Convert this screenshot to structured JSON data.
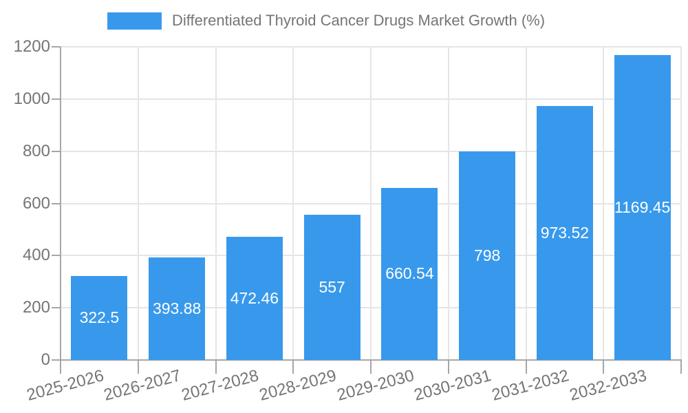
{
  "chart_data": {
    "type": "bar",
    "title": "Differentiated Thyroid Cancer Drugs Market Growth (%)",
    "categories": [
      "2025-2026",
      "2026-2027",
      "2027-2028",
      "2028-2029",
      "2029-2030",
      "2030-2031",
      "2031-2032",
      "2032-2033"
    ],
    "values": [
      322.5,
      393.88,
      472.46,
      557,
      660.54,
      798,
      973.52,
      1169.45
    ],
    "value_labels": [
      "322.5",
      "393.88",
      "472.46",
      "557",
      "660.54",
      "798",
      "973.52",
      "1169.45"
    ],
    "xlabel": "",
    "ylabel": "",
    "ylim": [
      0,
      1200
    ],
    "yticks": [
      0,
      200,
      400,
      600,
      800,
      1000,
      1200
    ],
    "grid": true,
    "legend_position": "top",
    "colors": {
      "bar": "#3899ec",
      "value_label": "#ffffff",
      "axis_text": "#757575",
      "grid_line": "#e5e5e5",
      "axis_line": "#a6a6a6",
      "background": "#ffffff"
    }
  }
}
